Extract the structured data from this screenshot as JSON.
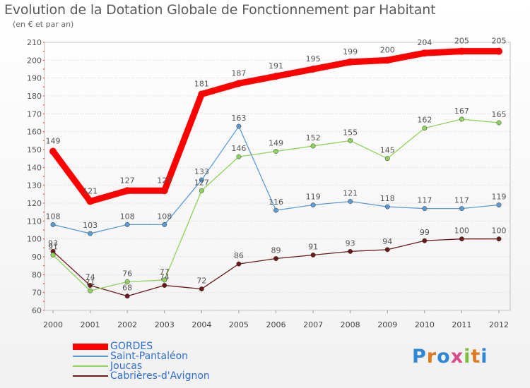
{
  "chart_data": {
    "type": "line",
    "title": "Evolution de la Dotation Globale de Fonctionnement par Habitant",
    "subtitle": "(en € et par an)",
    "xlabel": "",
    "ylabel": "",
    "x": [
      "2000",
      "2001",
      "2002",
      "2003",
      "2004",
      "2005",
      "2006",
      "2007",
      "2008",
      "2009",
      "2010",
      "2011",
      "2012"
    ],
    "ylim": [
      60,
      210
    ],
    "yticks": [
      60,
      70,
      80,
      90,
      100,
      110,
      120,
      130,
      140,
      150,
      160,
      170,
      180,
      190,
      200,
      210
    ],
    "grid": true,
    "series": [
      {
        "name": "GORDES",
        "color": "#ff0000",
        "values": [
          149,
          121,
          127,
          127,
          181,
          187,
          191,
          195,
          199,
          200,
          204,
          205,
          205
        ]
      },
      {
        "name": "Saint-Pantaléon",
        "color": "#5b9bd5",
        "values": [
          108,
          103,
          108,
          108,
          133,
          163,
          116,
          119,
          121,
          118,
          117,
          117,
          119
        ]
      },
      {
        "name": "Joucas",
        "color": "#8fd35a",
        "values": [
          91,
          71,
          76,
          77,
          127,
          146,
          149,
          152,
          155,
          145,
          162,
          167,
          165
        ]
      },
      {
        "name": "Cabrières-d'Avignon",
        "color": "#6b1a1a",
        "values": [
          93,
          74,
          68,
          74,
          72,
          86,
          89,
          91,
          93,
          94,
          99,
          100,
          100
        ]
      }
    ]
  },
  "legend": {
    "items": [
      {
        "label": "GORDES",
        "color": "#ff0000"
      },
      {
        "label": "Saint-Pantaléon",
        "color": "#5b9bd5"
      },
      {
        "label": "Joucas",
        "color": "#8fd35a"
      },
      {
        "label": "Cabrières-d'Avignon",
        "color": "#6b1a1a"
      }
    ]
  },
  "logo": {
    "letters": [
      "P",
      "r",
      "o",
      "x",
      "i",
      "t",
      "i"
    ],
    "colors": [
      "#2e86d6",
      "#e07a1f",
      "#2e86d6",
      "#d94c8a",
      "#7fbf3f",
      "#e07a1f",
      "#2e86d6"
    ]
  }
}
